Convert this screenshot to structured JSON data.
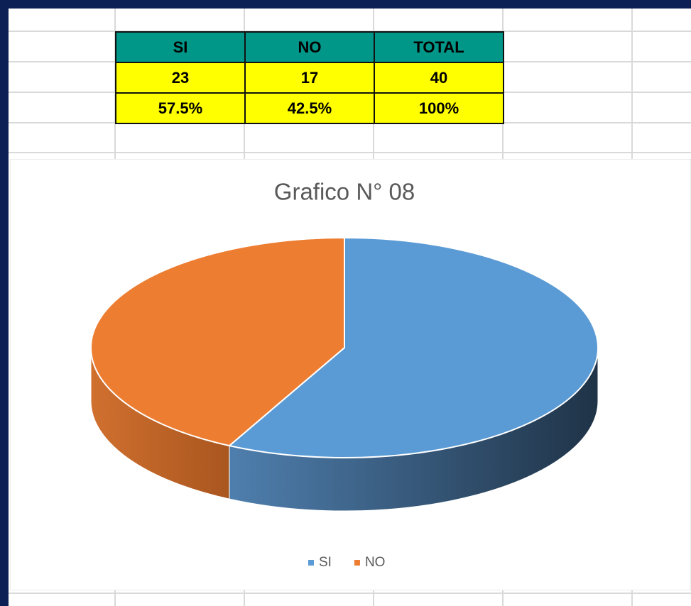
{
  "table": {
    "header": [
      "SI",
      "NO",
      "TOTAL"
    ],
    "rows": [
      [
        "23",
        "17",
        "40"
      ],
      [
        "57.5%",
        "42.5%",
        "100%"
      ]
    ]
  },
  "chart_data": {
    "type": "pie",
    "title": "Grafico N° 08",
    "categories": [
      "SI",
      "NO"
    ],
    "values": [
      23,
      17
    ],
    "colors": [
      "#5b9bd5",
      "#ed7d31"
    ],
    "legend": "bottom"
  }
}
